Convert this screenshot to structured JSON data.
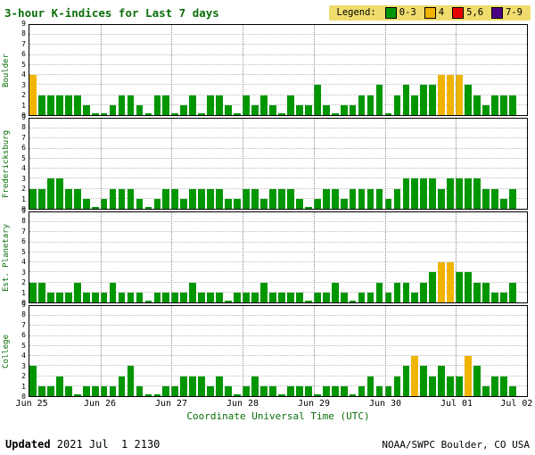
{
  "title": "3-hour K-indices for Last 7 days",
  "legend": {
    "label": "Legend:",
    "background": "#f0dc6e",
    "items": [
      {
        "label": "0-3",
        "color": "#009600"
      },
      {
        "label": "4",
        "color": "#f0b400"
      },
      {
        "label": "5,6",
        "color": "#e60000"
      },
      {
        "label": "7-9",
        "color": "#4b0082"
      }
    ]
  },
  "footer": {
    "updated_label": "Updated",
    "updated_value": " 2021 Jul  1 2130",
    "credit": "NOAA/SWPC Boulder, CO USA"
  },
  "chart_data": {
    "type": "bar",
    "title": "3-hour K-indices for Last 7 days",
    "xlabel": "Coordinate Universal Time (UTC)",
    "ylim": [
      0,
      9
    ],
    "y_ticks": [
      0,
      1,
      2,
      3,
      4,
      5,
      6,
      7,
      8,
      9
    ],
    "x_tick_labels": [
      "Jun 25",
      "Jun 26",
      "Jun 27",
      "Jun 28",
      "Jun 29",
      "Jun 30",
      "Jul 01",
      "Jul 02"
    ],
    "slots_per_day": 8,
    "num_slots": 56,
    "grid": true,
    "legend_position": "top-right",
    "color_rules": [
      {
        "range": "0-3",
        "color": "#009600"
      },
      {
        "range": "4",
        "color": "#f0b400"
      },
      {
        "range": "5,6",
        "color": "#e60000"
      },
      {
        "range": "7-9",
        "color": "#4b0082"
      }
    ],
    "series": [
      {
        "name": "Boulder",
        "values": [
          4,
          2,
          2,
          2,
          2,
          2,
          1,
          0,
          0,
          1,
          2,
          2,
          1,
          0,
          2,
          2,
          0,
          1,
          2,
          0,
          2,
          2,
          1,
          0,
          2,
          1,
          2,
          1,
          0,
          2,
          1,
          1,
          3,
          1,
          0,
          1,
          1,
          2,
          2,
          3,
          0,
          2,
          3,
          2,
          3,
          3,
          4,
          4,
          4,
          3,
          2,
          1,
          2,
          2,
          2,
          null
        ]
      },
      {
        "name": "Fredericksburg",
        "values": [
          2,
          2,
          3,
          3,
          2,
          2,
          1,
          0,
          1,
          2,
          2,
          2,
          1,
          0,
          1,
          2,
          2,
          1,
          2,
          2,
          2,
          2,
          1,
          1,
          2,
          2,
          1,
          2,
          2,
          2,
          1,
          0,
          1,
          2,
          2,
          1,
          2,
          2,
          2,
          2,
          1,
          2,
          3,
          3,
          3,
          3,
          2,
          3,
          3,
          3,
          3,
          2,
          2,
          1,
          2,
          null
        ]
      },
      {
        "name": "Est. Planetary",
        "values": [
          2,
          2,
          1,
          1,
          1,
          2,
          1,
          1,
          1,
          2,
          1,
          1,
          1,
          0,
          1,
          1,
          1,
          1,
          2,
          1,
          1,
          1,
          0,
          1,
          1,
          1,
          2,
          1,
          1,
          1,
          1,
          0,
          1,
          1,
          2,
          1,
          0,
          1,
          1,
          2,
          1,
          2,
          2,
          1,
          2,
          3,
          4,
          4,
          3,
          3,
          2,
          2,
          1,
          1,
          2,
          null
        ]
      },
      {
        "name": "College",
        "values": [
          3,
          1,
          1,
          2,
          1,
          0,
          1,
          1,
          1,
          1,
          2,
          3,
          1,
          0,
          0,
          1,
          1,
          2,
          2,
          2,
          1,
          2,
          1,
          0,
          1,
          2,
          1,
          1,
          0,
          1,
          1,
          1,
          0,
          1,
          1,
          1,
          0,
          1,
          2,
          1,
          1,
          2,
          3,
          4,
          3,
          2,
          3,
          2,
          2,
          4,
          3,
          1,
          2,
          2,
          1,
          null
        ]
      }
    ]
  }
}
